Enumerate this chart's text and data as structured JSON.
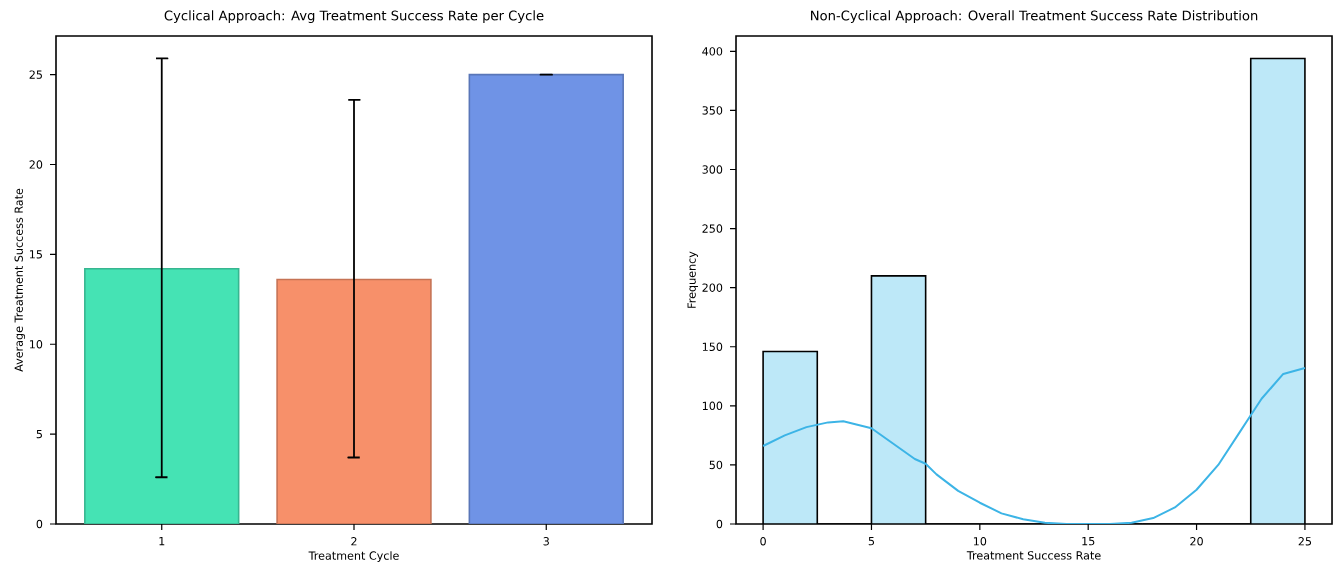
{
  "chart_data": [
    {
      "type": "bar",
      "title": "Cyclical Approach: Avg Treatment Success Rate per Cycle",
      "xlabel": "Treatment Cycle",
      "ylabel": "Average Treatment Success Rate",
      "categories": [
        "1",
        "2",
        "3"
      ],
      "values": [
        14.2,
        13.6,
        25.0
      ],
      "colors": [
        "#45e3b4",
        "#f7906a",
        "#6f93e6"
      ],
      "errors": [
        [
          2.6,
          25.9
        ],
        [
          3.7,
          23.6
        ],
        [
          25.0,
          25.0
        ]
      ],
      "ylim": [
        0,
        27.15
      ],
      "yticks": [
        0,
        5,
        10,
        15,
        20,
        25
      ]
    },
    {
      "type": "histogram",
      "title": "Non-Cyclical Approach: Overall Treatment Success Rate Distribution",
      "xlabel": "Treatment Success Rate",
      "ylabel": "Frequency",
      "series": [
        {
          "type": "histogram",
          "color": "#bde8f8",
          "bins": [
            0,
            2.5,
            5,
            7.5,
            10,
            12.5,
            15,
            17.5,
            20,
            22.5,
            25
          ],
          "values": [
            146,
            0,
            210,
            0,
            0,
            0,
            0,
            0,
            0,
            394
          ]
        },
        {
          "type": "line",
          "color": "#3cb4e6",
          "x": [
            0,
            1,
            2,
            3,
            3.7,
            5,
            6,
            7,
            7.5,
            8,
            9,
            10,
            11,
            12,
            13,
            14,
            15,
            16,
            17,
            18,
            19,
            20,
            21,
            22,
            22.5,
            23,
            24,
            25
          ],
          "values": [
            66,
            75,
            82,
            86,
            87,
            81,
            68,
            55,
            51,
            42,
            28,
            18,
            9,
            4,
            1,
            0,
            0,
            0,
            1,
            5,
            14,
            29,
            50,
            78,
            92,
            106,
            127,
            132
          ]
        }
      ],
      "xlim": [
        -1.25,
        26.25
      ],
      "xticks": [
        0,
        5,
        10,
        15,
        20,
        25
      ],
      "ylim": [
        0,
        413
      ],
      "yticks": [
        0,
        50,
        100,
        150,
        200,
        250,
        300,
        350,
        400
      ]
    }
  ]
}
